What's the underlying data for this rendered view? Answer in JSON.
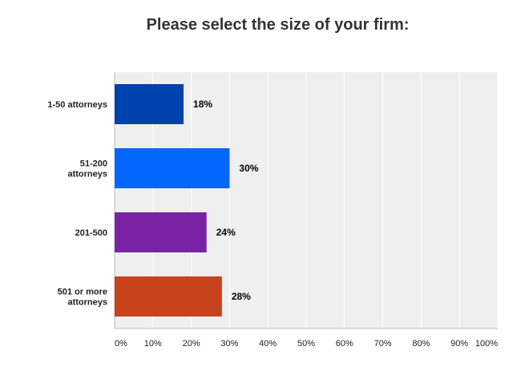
{
  "chart_data": {
    "type": "bar",
    "orientation": "horizontal",
    "title": "Please select the size of your firm:",
    "categories": [
      "1-50 attorneys",
      "51-200 attorneys",
      "201-500",
      "501 or more attorneys"
    ],
    "values": [
      18,
      30,
      24,
      28
    ],
    "value_labels": [
      "18%",
      "30%",
      "24%",
      "28%"
    ],
    "colors": [
      "#0042ad",
      "#0266ff",
      "#7a22a5",
      "#c8421c"
    ],
    "xlim": [
      0,
      100
    ],
    "xticks": [
      "0%",
      "10%",
      "20%",
      "30%",
      "40%",
      "50%",
      "60%",
      "70%",
      "80%",
      "90%",
      "100%"
    ],
    "grid": true,
    "plot_background": "#efefef",
    "xlabel": "",
    "ylabel": ""
  }
}
